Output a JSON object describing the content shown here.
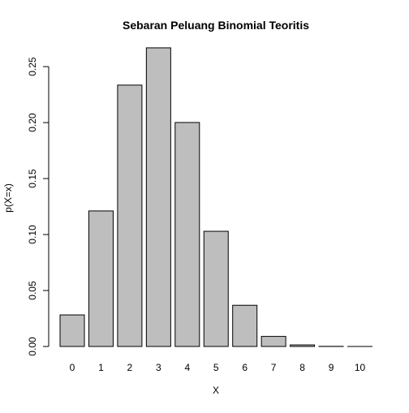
{
  "chart_data": {
    "type": "bar",
    "title": "Sebaran Peluang Binomial Teoritis",
    "xlabel": "X",
    "ylabel": "p(X=x)",
    "categories": [
      "0",
      "1",
      "2",
      "3",
      "4",
      "5",
      "6",
      "7",
      "8",
      "9",
      "10"
    ],
    "values": [
      0.0282,
      0.1211,
      0.2335,
      0.2668,
      0.2001,
      0.1029,
      0.0368,
      0.009,
      0.0014,
      0.0001,
      0.0
    ],
    "ylim": [
      0,
      0.26676
    ],
    "yticks": [
      "0.00",
      "0.05",
      "0.10",
      "0.15",
      "0.20",
      "0.25"
    ],
    "grid": false,
    "legend": "none",
    "colors": {
      "bar_fill": "#bebebe",
      "bar_stroke": "#000000",
      "axis": "#000000",
      "text": "#000000"
    }
  }
}
